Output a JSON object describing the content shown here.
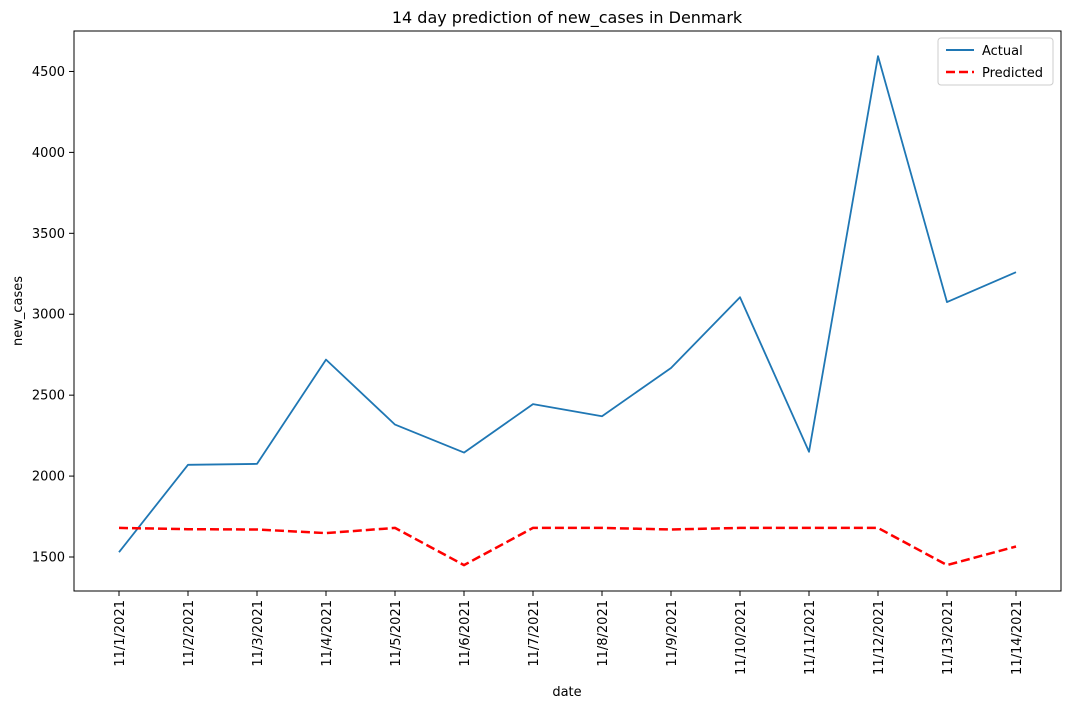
{
  "chart_data": {
    "type": "line",
    "title": "14 day prediction of new_cases in Denmark",
    "xlabel": "date",
    "ylabel": "new_cases",
    "categories": [
      "11/1/2021",
      "11/2/2021",
      "11/3/2021",
      "11/4/2021",
      "11/5/2021",
      "11/6/2021",
      "11/7/2021",
      "11/8/2021",
      "11/9/2021",
      "11/10/2021",
      "11/11/2021",
      "11/12/2021",
      "11/13/2021",
      "11/14/2021"
    ],
    "yticks": [
      1500,
      2000,
      2500,
      3000,
      3500,
      4000,
      4500
    ],
    "ylim": [
      1290,
      4750
    ],
    "grid": false,
    "legend_position": "top-right",
    "series": [
      {
        "name": "Actual",
        "color": "#1f77b4",
        "style": "solid",
        "values": [
          1530,
          2070,
          2075,
          2720,
          2318,
          2145,
          2445,
          2370,
          2668,
          3105,
          2150,
          4595,
          3075,
          3260
        ]
      },
      {
        "name": "Predicted",
        "color": "#ff0000",
        "style": "dashed",
        "values": [
          1680,
          1672,
          1670,
          1648,
          1680,
          1450,
          1680,
          1680,
          1670,
          1680,
          1680,
          1680,
          1450,
          1565
        ]
      }
    ]
  }
}
